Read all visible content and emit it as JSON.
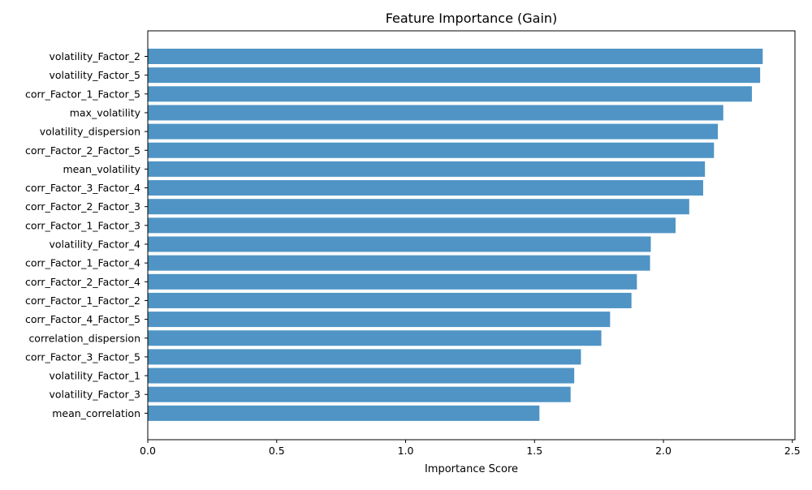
{
  "chart_data": {
    "type": "bar",
    "orientation": "horizontal",
    "title": "Feature Importance (Gain)",
    "xlabel": "Importance Score",
    "ylabel": "",
    "xlim": [
      0,
      2.51
    ],
    "xticks": [
      0.0,
      0.5,
      1.0,
      1.5,
      2.0,
      2.5
    ],
    "xtick_labels": [
      "0.0",
      "0.5",
      "1.0",
      "1.5",
      "2.0",
      "2.5"
    ],
    "grid": false,
    "legend": "none",
    "bar_color": "#4f94c5",
    "categories": [
      "volatility_Factor_2",
      "volatility_Factor_5",
      "corr_Factor_1_Factor_5",
      "max_volatility",
      "volatility_dispersion",
      "corr_Factor_2_Factor_5",
      "mean_volatility",
      "corr_Factor_3_Factor_4",
      "corr_Factor_2_Factor_3",
      "corr_Factor_1_Factor_3",
      "volatility_Factor_4",
      "corr_Factor_1_Factor_4",
      "corr_Factor_2_Factor_4",
      "corr_Factor_1_Factor_2",
      "corr_Factor_4_Factor_5",
      "correlation_dispersion",
      "corr_Factor_3_Factor_5",
      "volatility_Factor_1",
      "volatility_Factor_3",
      "mean_correlation"
    ],
    "values": [
      2.385,
      2.375,
      2.343,
      2.232,
      2.211,
      2.196,
      2.161,
      2.154,
      2.1,
      2.047,
      1.951,
      1.948,
      1.897,
      1.876,
      1.793,
      1.759,
      1.68,
      1.654,
      1.64,
      1.519
    ]
  }
}
